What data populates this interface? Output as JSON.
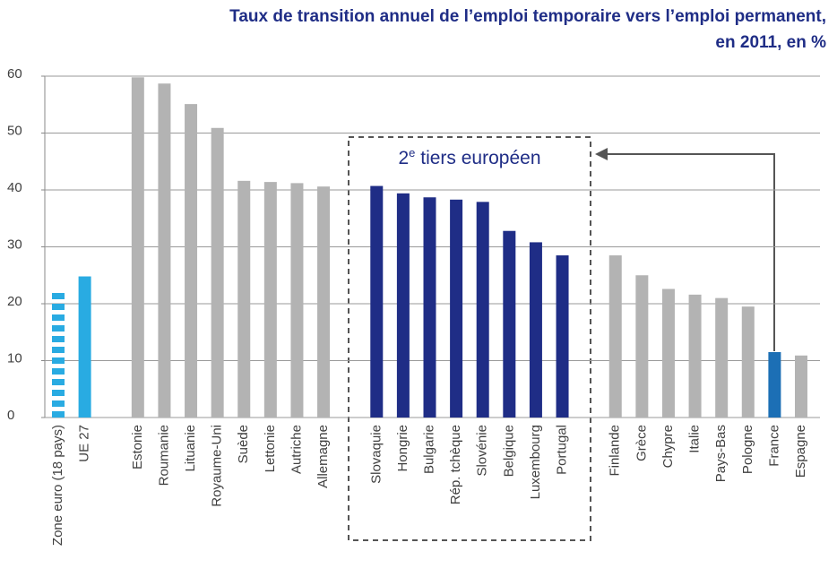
{
  "chart_data": {
    "type": "bar",
    "title": [
      "Taux de transition annuel de l’emploi temporaire vers l’emploi permanent,",
      "en 2011, en %"
    ],
    "annotation": [
      "2",
      "e",
      " tiers européen"
    ],
    "categories": [
      "Zone euro (18 pays)",
      "UE 27",
      null,
      "Estonie",
      "Roumanie",
      "Lituanie",
      "Royaume-Uni",
      "Suède",
      "Lettonie",
      "Autriche",
      "Allemagne",
      null,
      "Slovaquie",
      "Hongrie",
      "Bulgarie",
      "Rép. tchèque",
      "Slovénie",
      "Belgique",
      "Luxembourg",
      "Portugal",
      null,
      "Finlande",
      "Grèce",
      "Chypre",
      "Italie",
      "Pays-Bas",
      "Pologne",
      "France",
      "Espagne"
    ],
    "values": [
      22.5,
      24.8,
      null,
      59.8,
      58.7,
      55.1,
      50.9,
      41.6,
      41.4,
      41.2,
      40.6,
      null,
      40.7,
      39.4,
      38.7,
      38.3,
      37.9,
      32.8,
      30.8,
      28.5,
      null,
      28.5,
      25.0,
      22.6,
      21.6,
      21.0,
      19.5,
      11.5,
      10.9
    ],
    "colors": [
      "#29abe2",
      "#29abe2",
      null,
      "#b3b3b3",
      "#b3b3b3",
      "#b3b3b3",
      "#b3b3b3",
      "#b3b3b3",
      "#b3b3b3",
      "#b3b3b3",
      "#b3b3b3",
      null,
      "#1f2d86",
      "#1f2d86",
      "#1f2d86",
      "#1f2d86",
      "#1f2d86",
      "#1f2d86",
      "#1f2d86",
      "#1f2d86",
      null,
      "#b3b3b3",
      "#b3b3b3",
      "#b3b3b3",
      "#b3b3b3",
      "#b3b3b3",
      "#b3b3b3",
      "#1c6fb5",
      "#b3b3b3"
    ],
    "bar_styles": [
      "dashed",
      "solid",
      null,
      "solid",
      "solid",
      "solid",
      "solid",
      "solid",
      "solid",
      "solid",
      "solid",
      null,
      "solid",
      "solid",
      "solid",
      "solid",
      "solid",
      "solid",
      "solid",
      "solid",
      null,
      "solid",
      "solid",
      "solid",
      "solid",
      "solid",
      "solid",
      "solid",
      "solid"
    ],
    "ylim": [
      0,
      60
    ],
    "yticks": [
      0,
      10,
      20,
      30,
      40,
      50,
      60
    ],
    "grid": true
  }
}
